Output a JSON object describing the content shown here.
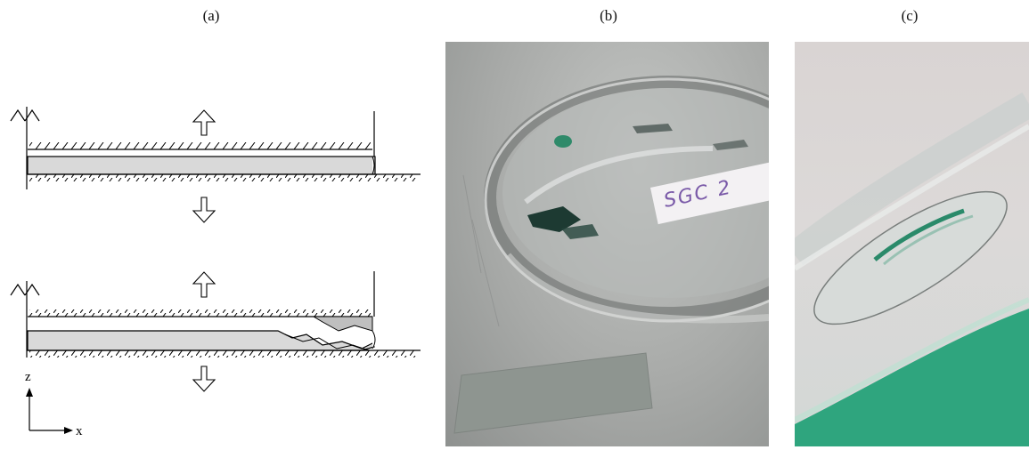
{
  "panels": {
    "a": {
      "label": "(a)"
    },
    "b": {
      "label": "(b)"
    },
    "c": {
      "label": "(c)"
    }
  },
  "axes": {
    "z_label": "z",
    "x_label": "x"
  },
  "photo_b": {
    "sample_label_text": "SGC 2"
  },
  "colors": {
    "layer_fill": "#d9d9d9",
    "crack_fill": "#bfbfbf",
    "line": "#000000",
    "green_stripe": "#2fa57e"
  }
}
